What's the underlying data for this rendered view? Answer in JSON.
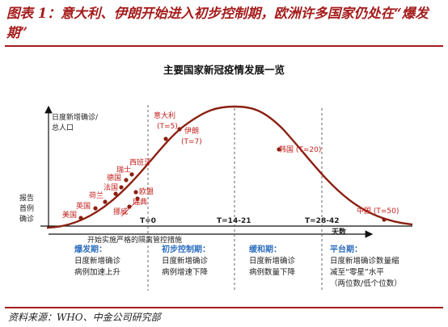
{
  "figure": {
    "caption": "图表 1：意大利、伊朗开始进入初步控制期，欧洲许多国家仍处在“爆发期”",
    "source": "资料来源：WHO、中金公司研究部"
  },
  "diagram": {
    "title": "主要国家新冠疫情发展一览",
    "y_axis_label_top": "日度新增确诊/",
    "y_axis_label_bottom": "总人口",
    "left_label": [
      "报告",
      "首例",
      "确诊"
    ],
    "x_arrow_label": "开始实施严格的隔离管控措施",
    "days_label": "天数",
    "ticks": [
      "T=0",
      "T=14-21",
      "T=28-42"
    ],
    "countries": [
      {
        "name": "美国"
      },
      {
        "name": "英国"
      },
      {
        "name": "荷兰"
      },
      {
        "name": "德国"
      },
      {
        "name": "法国"
      },
      {
        "name": "瑞士"
      },
      {
        "name": "西班牙"
      },
      {
        "name": "欧盟"
      },
      {
        "name": "瑞典"
      },
      {
        "name": "挪威"
      },
      {
        "name": "意大利",
        "t": "(T=5)"
      },
      {
        "name": "伊朗",
        "t": "(T=7)"
      },
      {
        "name": "韩国 (T=20)"
      },
      {
        "name": "中国 (T=50)"
      }
    ],
    "phases": [
      {
        "title": "爆发期：",
        "lines": [
          "日度新增确诊",
          "病例加速上升"
        ]
      },
      {
        "title": "初步控制期：",
        "lines": [
          "日度新增确诊",
          "病例增速下降"
        ]
      },
      {
        "title": "缓和期：",
        "lines": [
          "日度新增确诊",
          "病例数量下降"
        ]
      },
      {
        "title": "平台期：",
        "lines": [
          "日度新增确诊数量缩",
          "减至“零星”水平",
          "（两位数/低个位数）"
        ]
      }
    ],
    "colors": {
      "curve": "#8b2012",
      "accent": "#a51c1c",
      "phase_title": "#2e6fbf",
      "country": "#c0201b"
    }
  }
}
